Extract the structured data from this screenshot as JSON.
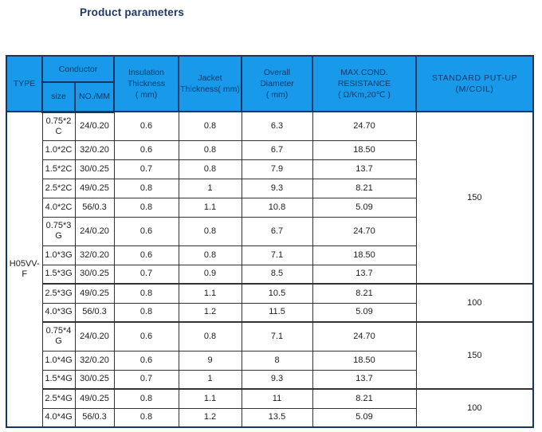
{
  "page": {
    "title": "Product parameters"
  },
  "colors": {
    "header_bg": "#1899e9",
    "header_text": "#0d3a6b",
    "title_text": "#1f3864",
    "navy_border": "#14365f",
    "cell_border": "#333333",
    "data_text": "#1c1c1c",
    "page_bg": "#ffffff"
  },
  "table": {
    "header": {
      "type_label": "TYPE",
      "conductor_label": "Conductor",
      "size_label": "size",
      "no_mm_label": "NO./MM",
      "insulation_lines": [
        "Insulation",
        "Thickness",
        "( mm)"
      ],
      "jacket_lines": [
        "Jacket",
        "Thickness( mm)"
      ],
      "overall_lines": [
        "Overall",
        "Diameter",
        "( mm)"
      ],
      "resistance_lines": [
        "MAX.COND.",
        "RESISTANCE",
        "( Ω/Km,20℃ )"
      ],
      "putup_lines": [
        "STANDARD PUT-UP",
        "(M/COIL)"
      ]
    },
    "type_value": "H05VV-F",
    "rows": [
      {
        "size": "0.75*2C",
        "no_mm": "24/0.20",
        "insulation": "0.6",
        "jacket": "0.8",
        "overall": "6.3",
        "resistance": "24.70",
        "tall": true
      },
      {
        "size": "1.0*2C",
        "no_mm": "32/0.20",
        "insulation": "0.6",
        "jacket": "0.8",
        "overall": "6.7",
        "resistance": "18.50"
      },
      {
        "size": "1.5*2C",
        "no_mm": "30/0.25",
        "insulation": "0.7",
        "jacket": "0.8",
        "overall": "7.9",
        "resistance": "13.7"
      },
      {
        "size": "2.5*2C",
        "no_mm": "49/0.25",
        "insulation": "0.8",
        "jacket": "1",
        "overall": "9.3",
        "resistance": "8.21"
      },
      {
        "size": "4.0*2C",
        "no_mm": "56/0.3",
        "insulation": "0.8",
        "jacket": "1.1",
        "overall": "10.8",
        "resistance": "5.09"
      },
      {
        "size": "0.75*3G",
        "no_mm": "24/0.20",
        "insulation": "0.6",
        "jacket": "0.8",
        "overall": "6.7",
        "resistance": "24.70",
        "tall": true
      },
      {
        "size": "1.0*3G",
        "no_mm": "32/0.20",
        "insulation": "0.6",
        "jacket": "0.8",
        "overall": "7.1",
        "resistance": "18.50"
      },
      {
        "size": "1.5*3G",
        "no_mm": "30/0.25",
        "insulation": "0.7",
        "jacket": "0.9",
        "overall": "8.5",
        "resistance": "13.7"
      },
      {
        "size": "2.5*3G",
        "no_mm": "49/0.25",
        "insulation": "0.8",
        "jacket": "1.1",
        "overall": "10.5",
        "resistance": "8.21"
      },
      {
        "size": "4.0*3G",
        "no_mm": "56/0.3",
        "insulation": "0.8",
        "jacket": "1.2",
        "overall": "11.5",
        "resistance": "5.09"
      },
      {
        "size": "0.75*4G",
        "no_mm": "24/0.20",
        "insulation": "0.6",
        "jacket": "0.8",
        "overall": "7.1",
        "resistance": "24.70",
        "tall": true
      },
      {
        "size": "1.0*4G",
        "no_mm": "32/0.20",
        "insulation": "0.6",
        "jacket": "9",
        "overall": "8",
        "resistance": "18.50"
      },
      {
        "size": "1.5*4G",
        "no_mm": "30/0.25",
        "insulation": "0.7",
        "jacket": "1",
        "overall": "9.3",
        "resistance": "13.7"
      },
      {
        "size": "2.5*4G",
        "no_mm": "49/0.25",
        "insulation": "0.8",
        "jacket": "1.1",
        "overall": "11",
        "resistance": "8.21"
      },
      {
        "size": "4.0*4G",
        "no_mm": "56/0.3",
        "insulation": "0.8",
        "jacket": "1.2",
        "overall": "13.5",
        "resistance": "5.09"
      }
    ],
    "putup_groups": [
      {
        "value": "150",
        "span": 8
      },
      {
        "value": "100",
        "span": 2
      },
      {
        "value": "150",
        "span": 3
      },
      {
        "value": "100",
        "span": 2
      }
    ]
  }
}
